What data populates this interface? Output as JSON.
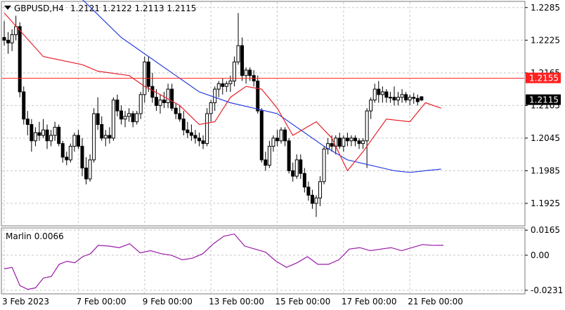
{
  "header": {
    "symbol": "GBPUSD,H4",
    "ohlc": "1.2121 1.2122 1.2113 1.2115",
    "indicator_label": "Marlin 0.0066"
  },
  "colors": {
    "bull": "#ffffff",
    "bear": "#000000",
    "ma_fast": "#e8202a",
    "ma_slow": "#2a40e0",
    "hline": "#ff2020",
    "oscillator": "#9a1aa8"
  },
  "chart_data": [
    {
      "type": "candlestick",
      "ylim": [
        1.1885,
        1.2295
      ],
      "yticks": [
        "1.2285",
        "1.2225",
        "1.2165",
        "1.2105",
        "1.2045",
        "1.1985",
        "1.1925"
      ],
      "ytick_values": [
        1.2285,
        1.2225,
        1.2165,
        1.2105,
        1.2045,
        1.1985,
        1.1925
      ],
      "horizontal_line": {
        "value": 1.2155,
        "label": "1.2155"
      },
      "current_price": {
        "value": 1.2115,
        "label": "1.2115"
      },
      "x_labels": [
        {
          "index": 0,
          "text": "3 Feb 2023"
        },
        {
          "index": 19,
          "text": "7 Feb 00:00"
        },
        {
          "index": 36,
          "text": "9 Feb 00:00"
        },
        {
          "index": 53,
          "text": "13 Feb 00:00"
        },
        {
          "index": 70,
          "text": "15 Feb 00:00"
        },
        {
          "index": 87,
          "text": "17 Feb 00:00"
        },
        {
          "index": 104,
          "text": "21 Feb 00:00"
        }
      ],
      "candles": [
        [
          1.223,
          1.226,
          1.2215,
          1.2225
        ],
        [
          1.2225,
          1.224,
          1.22,
          1.222
        ],
        [
          1.222,
          1.2245,
          1.2205,
          1.2235
        ],
        [
          1.2235,
          1.227,
          1.2225,
          1.225
        ],
        [
          1.225,
          1.2258,
          1.212,
          1.213
        ],
        [
          1.213,
          1.214,
          1.207,
          1.208
        ],
        [
          1.208,
          1.2095,
          1.205,
          1.207
        ],
        [
          1.207,
          1.208,
          1.202,
          1.204
        ],
        [
          1.204,
          1.2065,
          1.203,
          1.2055
        ],
        [
          1.2055,
          1.2075,
          1.204,
          1.205
        ],
        [
          1.205,
          1.208,
          1.2045,
          1.206
        ],
        [
          1.206,
          1.207,
          1.2025,
          1.204
        ],
        [
          1.204,
          1.206,
          1.203,
          1.205
        ],
        [
          1.205,
          1.2075,
          1.204,
          1.2065
        ],
        [
          1.2065,
          1.207,
          1.203,
          1.2035
        ],
        [
          1.2035,
          1.204,
          1.2,
          1.201
        ],
        [
          1.201,
          1.202,
          1.1995,
          1.2005
        ],
        [
          1.2005,
          1.2035,
          1.2,
          1.203
        ],
        [
          1.203,
          1.2055,
          1.202,
          1.205
        ],
        [
          1.205,
          1.206,
          1.2025,
          1.203
        ],
        [
          1.203,
          1.2045,
          1.1975,
          1.199
        ],
        [
          1.199,
          1.201,
          1.196,
          1.197
        ],
        [
          1.197,
          1.2015,
          1.1965,
          1.2005
        ],
        [
          1.2005,
          1.21,
          1.2,
          1.209
        ],
        [
          1.209,
          1.212,
          1.206,
          1.207
        ],
        [
          1.207,
          1.2085,
          1.204,
          1.2045
        ],
        [
          1.2045,
          1.206,
          1.203,
          1.205
        ],
        [
          1.205,
          1.2065,
          1.2035,
          1.2045
        ],
        [
          1.2045,
          1.212,
          1.204,
          1.2115
        ],
        [
          1.2115,
          1.2125,
          1.2085,
          1.2095
        ],
        [
          1.2095,
          1.2105,
          1.207,
          1.208
        ],
        [
          1.208,
          1.2095,
          1.2065,
          1.2085
        ],
        [
          1.2085,
          1.21,
          1.2075,
          1.209
        ],
        [
          1.209,
          1.2095,
          1.2065,
          1.2075
        ],
        [
          1.2075,
          1.2095,
          1.207,
          1.209
        ],
        [
          1.209,
          1.213,
          1.208,
          1.2125
        ],
        [
          1.2125,
          1.2195,
          1.211,
          1.2185
        ],
        [
          1.2185,
          1.2195,
          1.213,
          1.214
        ],
        [
          1.214,
          1.2165,
          1.211,
          1.212
        ],
        [
          1.212,
          1.2135,
          1.2095,
          1.2105
        ],
        [
          1.2105,
          1.2125,
          1.209,
          1.2115
        ],
        [
          1.2115,
          1.213,
          1.21,
          1.211
        ],
        [
          1.211,
          1.2145,
          1.21,
          1.2135
        ],
        [
          1.2135,
          1.2145,
          1.2095,
          1.21
        ],
        [
          1.21,
          1.211,
          1.208,
          1.209
        ],
        [
          1.209,
          1.2105,
          1.2075,
          1.208
        ],
        [
          1.208,
          1.2095,
          1.205,
          1.206
        ],
        [
          1.206,
          1.2075,
          1.2045,
          1.2055
        ],
        [
          1.2055,
          1.207,
          1.204,
          1.205
        ],
        [
          1.205,
          1.206,
          1.2035,
          1.2045
        ],
        [
          1.2045,
          1.2055,
          1.203,
          1.204
        ],
        [
          1.204,
          1.205,
          1.2025,
          1.2035
        ],
        [
          1.2035,
          1.21,
          1.203,
          1.209
        ],
        [
          1.209,
          1.2115,
          1.2075,
          1.211
        ],
        [
          1.211,
          1.214,
          1.2095,
          1.2135
        ],
        [
          1.2135,
          1.215,
          1.212,
          1.2145
        ],
        [
          1.2145,
          1.2155,
          1.2125,
          1.214
        ],
        [
          1.214,
          1.215,
          1.213,
          1.2145
        ],
        [
          1.2145,
          1.216,
          1.213,
          1.215
        ],
        [
          1.215,
          1.2195,
          1.214,
          1.2185
        ],
        [
          1.2185,
          1.2275,
          1.218,
          1.2215
        ],
        [
          1.2215,
          1.223,
          1.215,
          1.216
        ],
        [
          1.216,
          1.2175,
          1.2145,
          1.217
        ],
        [
          1.217,
          1.2175,
          1.215,
          1.216
        ],
        [
          1.216,
          1.217,
          1.214,
          1.215
        ],
        [
          1.215,
          1.216,
          1.209,
          1.2095
        ],
        [
          1.2095,
          1.21,
          1.2,
          1.2005
        ],
        [
          1.2005,
          1.202,
          1.1985,
          1.1995
        ],
        [
          1.1995,
          1.204,
          1.199,
          1.203
        ],
        [
          1.203,
          1.205,
          1.202,
          1.2045
        ],
        [
          1.2045,
          1.206,
          1.203,
          1.204
        ],
        [
          1.204,
          1.2065,
          1.2035,
          1.206
        ],
        [
          1.206,
          1.2065,
          1.203,
          1.204
        ],
        [
          1.204,
          1.2045,
          1.198,
          1.1985
        ],
        [
          1.1985,
          1.2,
          1.1965,
          1.1975
        ],
        [
          1.1975,
          1.2015,
          1.197,
          1.2005
        ],
        [
          1.2005,
          1.2015,
          1.197,
          1.198
        ],
        [
          1.198,
          1.199,
          1.1945,
          1.1955
        ],
        [
          1.1955,
          1.1965,
          1.193,
          1.194
        ],
        [
          1.194,
          1.195,
          1.1915,
          1.1925
        ],
        [
          1.1925,
          1.194,
          1.19,
          1.1935
        ],
        [
          1.1935,
          1.1975,
          1.192,
          1.1965
        ],
        [
          1.1965,
          1.203,
          1.196,
          1.2025
        ],
        [
          1.2025,
          1.2045,
          1.2015,
          1.2035
        ],
        [
          1.2035,
          1.205,
          1.202,
          1.203
        ],
        [
          1.203,
          1.205,
          1.2015,
          1.2045
        ],
        [
          1.2045,
          1.2055,
          1.2025,
          1.203
        ],
        [
          1.203,
          1.205,
          1.202,
          1.2045
        ],
        [
          1.2045,
          1.2055,
          1.203,
          1.204
        ],
        [
          1.204,
          1.205,
          1.203,
          1.2045
        ],
        [
          1.2045,
          1.205,
          1.203,
          1.204
        ],
        [
          1.204,
          1.2045,
          1.2025,
          1.2035
        ],
        [
          1.2035,
          1.2045,
          1.2025,
          1.204
        ],
        [
          1.204,
          1.21,
          1.199,
          1.2095
        ],
        [
          1.2095,
          1.212,
          1.208,
          1.2115
        ],
        [
          1.2115,
          1.2145,
          1.211,
          1.2135
        ],
        [
          1.2135,
          1.215,
          1.211,
          1.2125
        ],
        [
          1.2125,
          1.214,
          1.211,
          1.213
        ],
        [
          1.213,
          1.2135,
          1.211,
          1.212
        ],
        [
          1.212,
          1.213,
          1.211,
          1.212
        ],
        [
          1.212,
          1.214,
          1.2105,
          1.2115
        ],
        [
          1.2115,
          1.213,
          1.2105,
          1.212
        ],
        [
          1.212,
          1.2135,
          1.211,
          1.2125
        ],
        [
          1.2125,
          1.213,
          1.211,
          1.2115
        ],
        [
          1.2115,
          1.2125,
          1.2105,
          1.212
        ],
        [
          1.212,
          1.2128,
          1.2108,
          1.2118
        ],
        [
          1.2118,
          1.2125,
          1.2105,
          1.2112
        ],
        [
          1.2121,
          1.2122,
          1.2113,
          1.2115
        ]
      ],
      "ma_fast": [
        [
          0,
          1.2275
        ],
        [
          10,
          1.2195
        ],
        [
          20,
          1.218
        ],
        [
          24,
          1.2168
        ],
        [
          32,
          1.216
        ],
        [
          36,
          1.214
        ],
        [
          40,
          1.2125
        ],
        [
          45,
          1.2105
        ],
        [
          50,
          1.207
        ],
        [
          54,
          1.2075
        ],
        [
          58,
          1.212
        ],
        [
          62,
          1.214
        ],
        [
          66,
          1.2135
        ],
        [
          70,
          1.21
        ],
        [
          74,
          1.205
        ],
        [
          80,
          1.2075
        ],
        [
          84,
          1.2045
        ],
        [
          88,
          1.1985
        ],
        [
          92,
          1.202
        ],
        [
          98,
          1.208
        ],
        [
          104,
          1.2075
        ],
        [
          108,
          1.211
        ],
        [
          112,
          1.21
        ]
      ],
      "ma_slow": [
        [
          0,
          1.233
        ],
        [
          20,
          1.23
        ],
        [
          30,
          1.223
        ],
        [
          40,
          1.218
        ],
        [
          50,
          1.213
        ],
        [
          58,
          1.211
        ],
        [
          64,
          1.21
        ],
        [
          70,
          1.209
        ],
        [
          76,
          1.206
        ],
        [
          82,
          1.203
        ],
        [
          88,
          1.2005
        ],
        [
          94,
          1.1995
        ],
        [
          100,
          1.1985
        ],
        [
          104,
          1.1982
        ],
        [
          108,
          1.1985
        ],
        [
          112,
          1.1988
        ]
      ]
    },
    {
      "type": "line",
      "title": "Marlin 0.0066",
      "ylim": [
        -0.025,
        0.0175
      ],
      "yticks": [
        "0.0165",
        "0.00",
        "-0.0231"
      ],
      "ytick_values": [
        0.0165,
        0.0,
        -0.0231
      ],
      "values": [
        [
          0,
          -0.009
        ],
        [
          3,
          -0.008
        ],
        [
          6,
          -0.02
        ],
        [
          9,
          -0.0225
        ],
        [
          12,
          -0.0215
        ],
        [
          15,
          -0.015
        ],
        [
          18,
          -0.014
        ],
        [
          21,
          -0.006
        ],
        [
          24,
          -0.004
        ],
        [
          27,
          -0.005
        ],
        [
          30,
          -0.001
        ],
        [
          33,
          0.001
        ],
        [
          36,
          0.0065
        ],
        [
          40,
          0.006
        ],
        [
          44,
          0.005
        ],
        [
          48,
          0.0075
        ],
        [
          52,
          0.0015
        ],
        [
          56,
          0.003
        ],
        [
          60,
          0.001
        ],
        [
          64,
          0.0
        ],
        [
          68,
          -0.003
        ],
        [
          72,
          -0.002
        ],
        [
          76,
          0.001
        ],
        [
          80,
          0.0075
        ],
        [
          84,
          0.0125
        ],
        [
          88,
          0.014
        ],
        [
          92,
          0.006
        ],
        [
          96,
          0.004
        ],
        [
          100,
          0.002
        ],
        [
          104,
          -0.004
        ],
        [
          108,
          -0.008
        ],
        [
          112,
          -0.005
        ],
        [
          116,
          -0.001
        ],
        [
          120,
          -0.006
        ],
        [
          124,
          -0.006
        ],
        [
          128,
          -0.003
        ],
        [
          132,
          0.004
        ],
        [
          136,
          0.005
        ],
        [
          140,
          0.003
        ],
        [
          144,
          0.004
        ],
        [
          148,
          0.005
        ],
        [
          152,
          0.003
        ],
        [
          156,
          0.005
        ],
        [
          160,
          0.007
        ],
        [
          164,
          0.0065
        ],
        [
          168,
          0.0066
        ]
      ]
    }
  ]
}
